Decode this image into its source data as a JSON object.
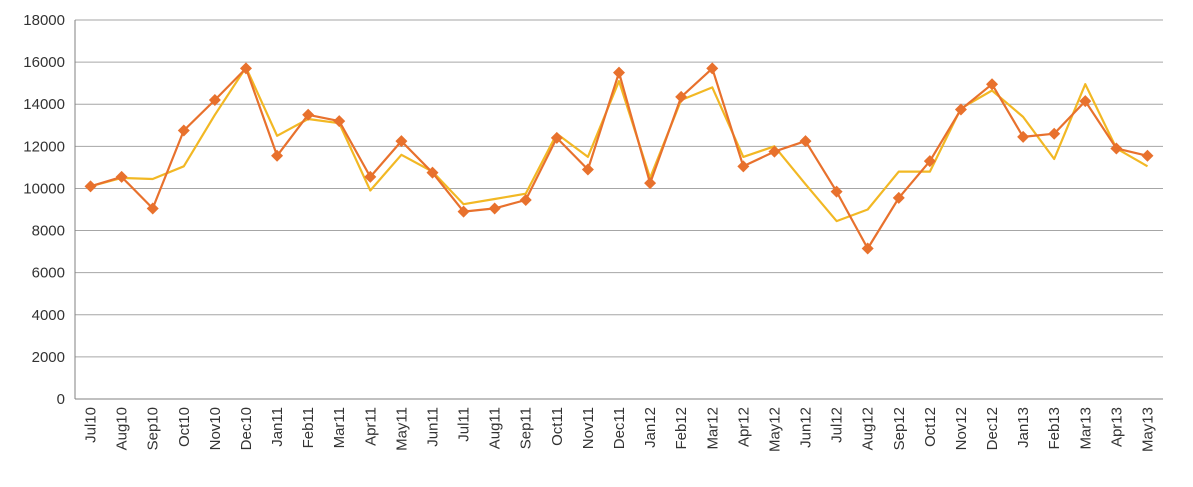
{
  "chart_data": {
    "type": "line",
    "title": "",
    "xlabel": "",
    "ylabel": "",
    "ylim": [
      0,
      18000
    ],
    "yticks": [
      0,
      2000,
      4000,
      6000,
      8000,
      10000,
      12000,
      14000,
      16000,
      18000
    ],
    "grid": true,
    "legend": "none",
    "categories": [
      "Jul10",
      "Aug10",
      "Sep10",
      "Oct10",
      "Nov10",
      "Dec10",
      "Jan11",
      "Feb11",
      "Mar11",
      "Apr11",
      "May11",
      "Jun11",
      "Jul11",
      "Aug11",
      "Sep11",
      "Oct11",
      "Nov11",
      "Dec11",
      "Jan12",
      "Feb12",
      "Mar12",
      "Apr12",
      "May12",
      "Jun12",
      "Jul12",
      "Aug12",
      "Sep12",
      "Oct12",
      "Nov12",
      "Dec12",
      "Jan13",
      "Feb13",
      "Mar13",
      "Apr13",
      "May13"
    ],
    "series": [
      {
        "color": "#f2b824",
        "marker": "none",
        "values": [
          10100,
          10500,
          10450,
          11050,
          13500,
          15750,
          12500,
          13300,
          13100,
          9900,
          11600,
          10800,
          9250,
          9500,
          9750,
          12600,
          11500,
          15100,
          10500,
          14200,
          14800,
          11500,
          12000,
          10200,
          8450,
          9000,
          10800,
          10800,
          13800,
          14650,
          13400,
          11400,
          14950,
          11900,
          11050
        ]
      },
      {
        "color": "#e8712d",
        "marker": "diamond",
        "values": [
          10100,
          10550,
          9050,
          12750,
          14200,
          15700,
          11550,
          13500,
          13200,
          10550,
          12250,
          10750,
          8900,
          9050,
          9450,
          12400,
          10900,
          15500,
          10250,
          14350,
          15700,
          11050,
          11750,
          12250,
          9850,
          7150,
          9550,
          11300,
          13750,
          14950,
          12450,
          12600,
          14150,
          11900,
          11550
        ]
      }
    ]
  }
}
